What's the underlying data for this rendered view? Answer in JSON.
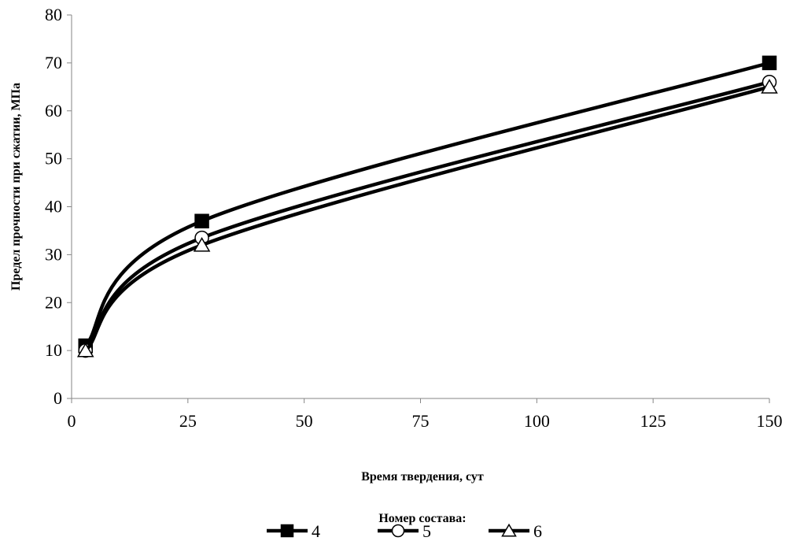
{
  "chart_data": {
    "type": "line",
    "title": "",
    "xlabel": "Время  твердения, сут",
    "ylabel": "Предел прочности при сжатии, МПа",
    "xlim": [
      0,
      150
    ],
    "ylim": [
      0,
      80
    ],
    "xticks": [
      0,
      25,
      50,
      75,
      100,
      125,
      150
    ],
    "yticks": [
      0,
      10,
      20,
      30,
      40,
      50,
      60,
      70,
      80
    ],
    "grid": false,
    "smooth": true,
    "legend_title": "Номер состава:",
    "legend_position": "bottom",
    "x": [
      3,
      28,
      150
    ],
    "series": [
      {
        "name": "4",
        "marker": "square",
        "values": [
          11,
          37,
          70
        ]
      },
      {
        "name": "5",
        "marker": "circle",
        "values": [
          10,
          33.5,
          66
        ]
      },
      {
        "name": "6",
        "marker": "triangle",
        "values": [
          10,
          32,
          65
        ]
      }
    ],
    "colors": {
      "line": "#000000",
      "marker_fill_filled": "#000000",
      "marker_fill_open": "#ffffff"
    }
  }
}
